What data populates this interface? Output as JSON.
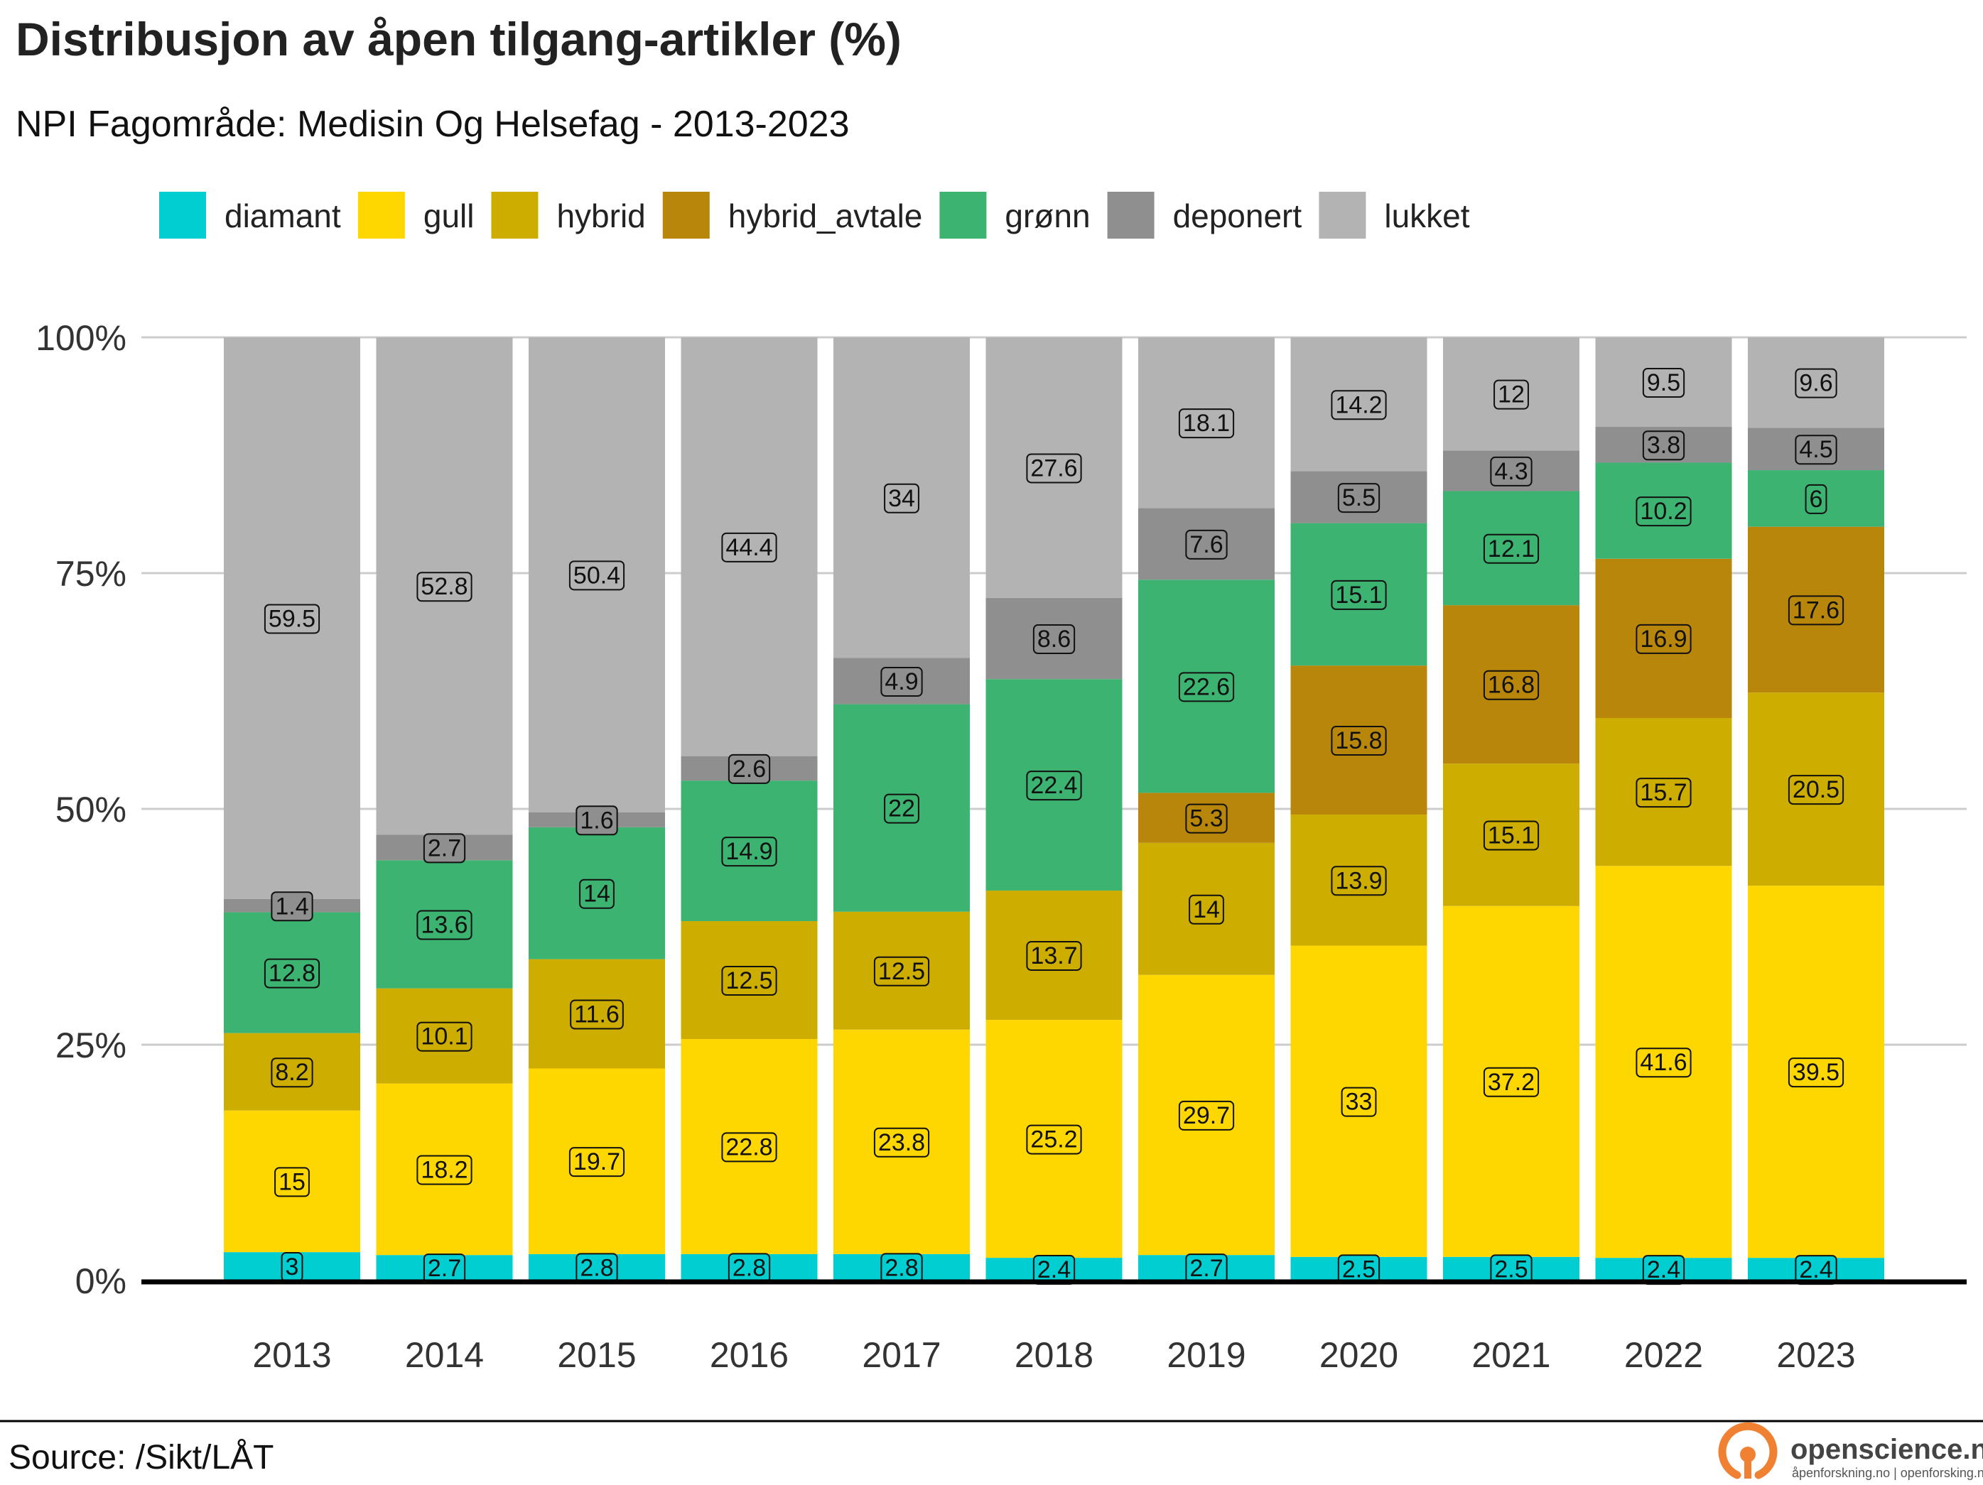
{
  "chart_data": {
    "type": "bar",
    "stacked": true,
    "normalized": true,
    "title": "Distribusjon av åpen tilgang-artikler (%)",
    "subtitle": "NPI Fagområde: Medisin Og Helsefag - 2013-2023",
    "xlabel": "",
    "ylabel": "",
    "ylim": [
      0,
      100
    ],
    "yticks": [
      "0%",
      "25%",
      "50%",
      "75%",
      "100%"
    ],
    "ytick_values": [
      0,
      25,
      50,
      75,
      100
    ],
    "grid": true,
    "legend_position": "top",
    "categories": [
      "2013",
      "2014",
      "2015",
      "2016",
      "2017",
      "2018",
      "2019",
      "2020",
      "2021",
      "2022",
      "2023"
    ],
    "series": [
      {
        "name": "diamant",
        "color": "#00CED1",
        "values": [
          3,
          2.7,
          2.8,
          2.8,
          2.8,
          2.4,
          2.7,
          2.5,
          2.5,
          2.4,
          2.4
        ]
      },
      {
        "name": "gull",
        "color": "#FFD700",
        "values": [
          15,
          18.2,
          19.7,
          22.8,
          23.8,
          25.2,
          29.7,
          33,
          37.2,
          41.6,
          39.5
        ]
      },
      {
        "name": "hybrid",
        "color": "#CDAD00",
        "values": [
          8.2,
          10.1,
          11.6,
          12.5,
          12.5,
          13.7,
          14,
          13.9,
          15.1,
          15.7,
          20.5
        ]
      },
      {
        "name": "hybrid_avtale",
        "color": "#B8860B",
        "values": [
          0,
          0,
          0,
          0,
          0,
          0,
          5.3,
          15.8,
          16.8,
          16.9,
          17.6
        ]
      },
      {
        "name": "grønn",
        "color": "#3CB371",
        "values": [
          12.8,
          13.6,
          14,
          14.9,
          22,
          22.4,
          22.6,
          15.1,
          12.1,
          10.2,
          6
        ]
      },
      {
        "name": "deponert",
        "color": "#8F8F8F",
        "values": [
          1.4,
          2.7,
          1.6,
          2.6,
          4.9,
          8.6,
          7.6,
          5.5,
          4.3,
          3.8,
          4.5
        ]
      },
      {
        "name": "lukket",
        "color": "#B3B3B3",
        "values": [
          59.5,
          52.8,
          50.4,
          44.4,
          34,
          27.6,
          18.1,
          14.2,
          12,
          9.5,
          9.6
        ]
      }
    ]
  },
  "footer": {
    "source": "Source: /Sikt/LÅT",
    "logo_name": "opensciencelogo",
    "logo_text": "openscience.no",
    "logo_subtext": "åpenforskning.no | openforsking.no",
    "logo_color": "#F08032"
  }
}
